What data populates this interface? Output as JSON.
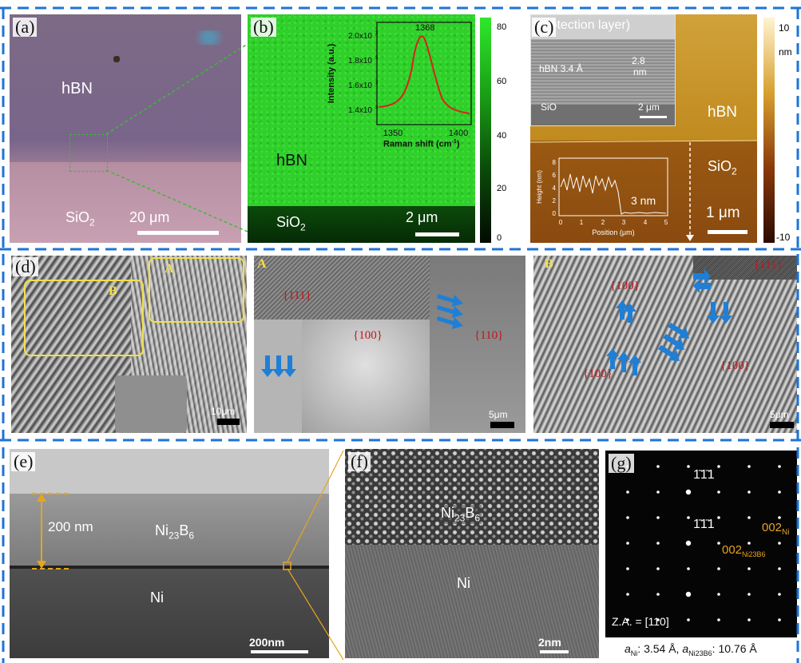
{
  "panels": {
    "a": {
      "label": "(a)",
      "hbn": "hBN",
      "sio2": "SiO",
      "sio2_sub": "2",
      "scale": "20 μm"
    },
    "b": {
      "label": "(b)",
      "hbn": "hBN",
      "sio2": "SiO",
      "sio2_sub": "2",
      "scale": "2 μm",
      "colorbar_ticks": [
        "80",
        "60",
        "40",
        "20",
        "0"
      ],
      "inset": {
        "ylabel": "Intensity (a.u.)",
        "xlabel": "Raman shift (cm",
        "xlabel_sup": "-1",
        "xlabel_end": ")",
        "peak_label": "1368",
        "yticks": [
          "2.0x10",
          "1.8x10",
          "1.6x10",
          "1.4x10"
        ],
        "xticks": [
          "1350",
          "1400"
        ]
      }
    },
    "c": {
      "label": "(c)",
      "protection": "(protection layer)",
      "hbn_spacing": "hBN 3.4 Å",
      "thickness": "2.8",
      "thickness_unit": "nm",
      "sio2_inset": "SiO",
      "inset_scale": "2 μm",
      "hbn": "hBN",
      "sio2": "SiO",
      "sio2_sub": "2",
      "scale": "1 μm",
      "colorbar_top": "10",
      "colorbar_unit": "nm",
      "colorbar_bottom": "-10",
      "profile": {
        "ylabel": "Height (nm)",
        "xlabel": "Position (μm)",
        "step_label": "3 nm",
        "yticks": [
          "8",
          "6",
          "4",
          "2",
          "0"
        ],
        "xticks": [
          "0",
          "1",
          "2",
          "3",
          "4",
          "5"
        ]
      }
    },
    "d": {
      "label": "(d)",
      "box_a": "A",
      "box_b": "B",
      "scale1": "10μm",
      "sub_a": "A",
      "sub_a_facets": [
        "{111}",
        "{100}",
        "{110}"
      ],
      "scale2": "5μm",
      "sub_b": "B",
      "sub_b_facets": [
        "{111}",
        "{100}",
        "{100}",
        "{100}"
      ],
      "scale3": "5μm"
    },
    "e": {
      "label": "(e)",
      "thickness": "200 nm",
      "ni23b6": "Ni",
      "ni23b6_sub": "23",
      "b": "B",
      "b_sub": "6",
      "ni": "Ni",
      "scale": "200nm"
    },
    "f": {
      "label": "(f)",
      "ni23b6": "Ni",
      "ni23b6_sub": "23",
      "b": "B",
      "b_sub": "6",
      "ni": "Ni",
      "scale": "2nm"
    },
    "g": {
      "label": "(g)",
      "spot1": "1̄1̄1",
      "spot2": "1̄1̄1",
      "spot_ni": "002",
      "spot_ni_sub": "Ni",
      "spot_nib": "002",
      "spot_nib_sub": "Ni23B6",
      "za": "Z.A. = [110]",
      "caption_a": "a",
      "caption_ni_sub": "Ni",
      "caption_ni_val": ": 3.54 Å, ",
      "caption_b_sub": "Ni23B6",
      "caption_b_val": ": 10.76 Å"
    }
  },
  "colors": {
    "dash_border": "#1f73d6",
    "raman_green": "#2ed12a",
    "afm_gold": "#c8860f",
    "afm_brown": "#8a4a10",
    "facet_red": "#c0151b",
    "arrow_blue": "#1f7fd6",
    "highlight_yellow": "#f2e04a",
    "tem_marker_orange": "#e6a51f"
  }
}
